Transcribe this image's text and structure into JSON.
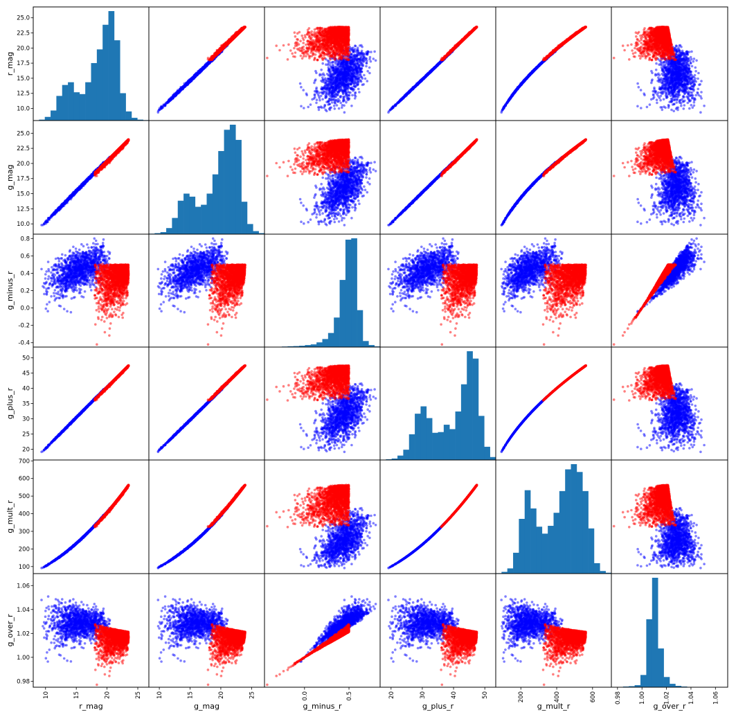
{
  "chart_data": {
    "type": "scatter_matrix",
    "variables": [
      "r_mag",
      "g_mag",
      "g_minus_r",
      "g_plus_r",
      "g_mult_r",
      "g_over_r"
    ],
    "series_colors": {
      "faint": "#ff0000",
      "bright": "#0000ff",
      "hist": "#1f77b4"
    },
    "axes": {
      "r_mag": {
        "range": [
          8.0,
          26.8
        ],
        "ticks": [
          10,
          15,
          20,
          25
        ],
        "ytick_labels": [
          "10.0",
          "12.5",
          "15.0",
          "17.5",
          "20.0",
          "22.5",
          "25.0"
        ]
      },
      "g_mag": {
        "range": [
          8.3,
          27.1
        ],
        "ticks": [
          10,
          15,
          20,
          25
        ],
        "ytick_labels": [
          "10.0",
          "12.5",
          "15.0",
          "17.5",
          "20.0",
          "22.5",
          "25.0"
        ]
      },
      "g_minus_r": {
        "range": [
          -0.45,
          0.85
        ],
        "ticks": [
          0.0,
          0.5
        ],
        "ytick_labels": [
          "-0.4",
          "-0.2",
          "0.0",
          "0.2",
          "0.4",
          "0.6",
          "0.8"
        ]
      },
      "g_plus_r": {
        "range": [
          16.5,
          53.5
        ],
        "ticks": [
          20,
          30,
          40,
          50
        ],
        "ytick_labels": [
          "20",
          "25",
          "30",
          "35",
          "40",
          "45",
          "50"
        ]
      },
      "g_mult_r": {
        "range": [
          60,
          705
        ],
        "ticks": [
          200,
          400,
          600
        ],
        "ytick_labels": [
          "100",
          "200",
          "300",
          "400",
          "500",
          "600",
          "700"
        ]
      },
      "g_over_r": {
        "range": [
          0.975,
          1.07
        ],
        "ticks": [
          0.98,
          1.0,
          1.02,
          1.04,
          1.06
        ],
        "ytick_labels": [
          "0.98",
          "1.00",
          "1.02",
          "1.04",
          "1.06"
        ]
      }
    },
    "histograms": {
      "r_mag": [
        0.2,
        1,
        4,
        11,
        27,
        39,
        42,
        31,
        29,
        42,
        63,
        78,
        105,
        120,
        88,
        30,
        10,
        3,
        1,
        0.5
      ],
      "g_mag": [
        0.5,
        1,
        2,
        6,
        16,
        33,
        40,
        37,
        27,
        29,
        40,
        59,
        82,
        103,
        108,
        93,
        32,
        10,
        3,
        1
      ],
      "g_minus_r": [
        0.1,
        0.2,
        0.4,
        0.8,
        1.2,
        1.5,
        2,
        3,
        4,
        7,
        12,
        21,
        44,
        100,
        160,
        162,
        55,
        9,
        3,
        1
      ],
      "g_plus_r": [
        0.5,
        1,
        2,
        6,
        14,
        35,
        63,
        73,
        57,
        37,
        38,
        48,
        42,
        66,
        103,
        148,
        138,
        60,
        18,
        4
      ],
      "g_mult_r": [
        0.5,
        2,
        6,
        24,
        63,
        96,
        75,
        54,
        46,
        55,
        70,
        95,
        120,
        126,
        117,
        95,
        52,
        12,
        3,
        1
      ],
      "g_over_r": [
        0.2,
        0.5,
        1,
        1.5,
        3,
        18,
        100,
        161,
        57,
        15,
        5,
        2,
        1,
        0.5,
        0.2,
        0.1,
        0.1,
        0.1,
        0.1,
        0.1
      ]
    },
    "legend": "none",
    "title": ""
  }
}
